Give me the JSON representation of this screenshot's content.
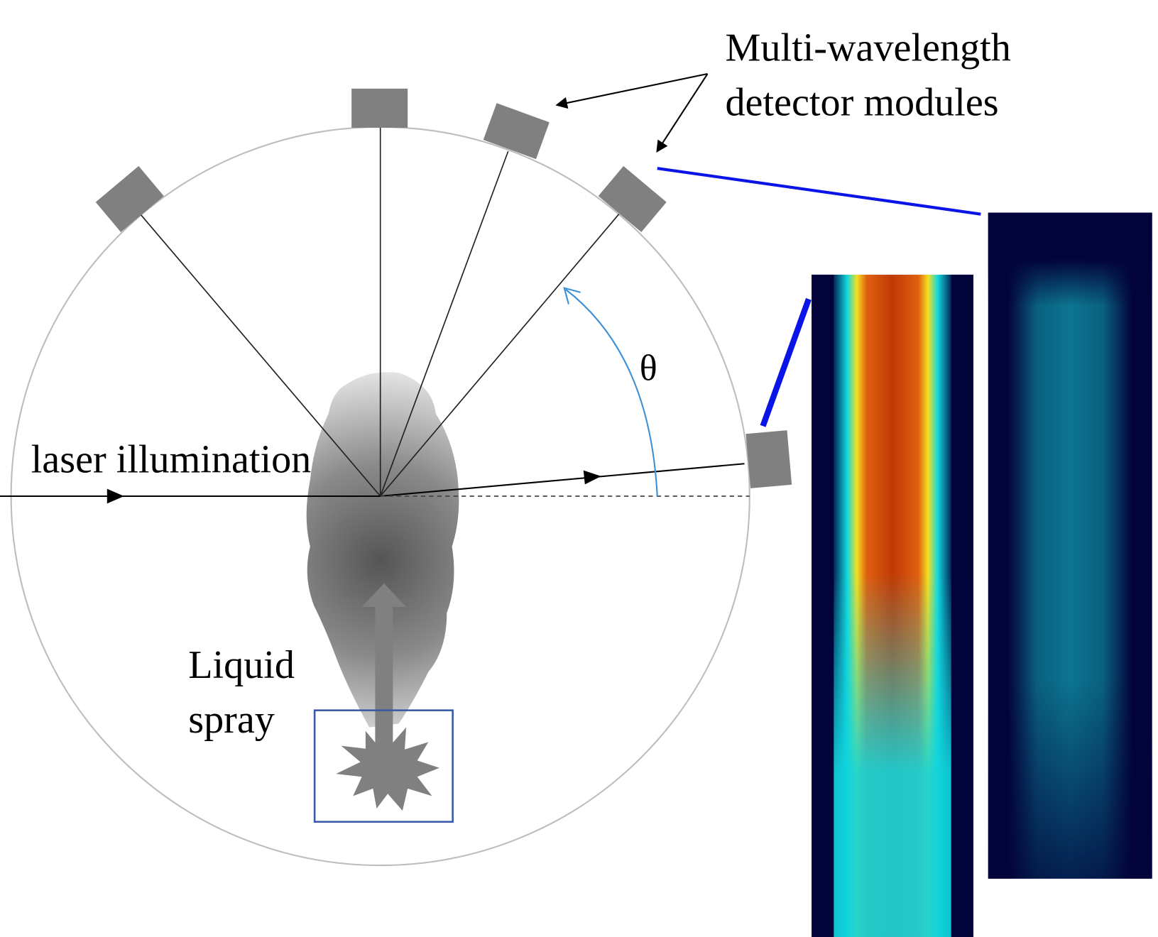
{
  "labels": {
    "detectors": "Multi-wavelength",
    "detectors_line2": "detector modules",
    "laser": "laser illumination",
    "spray_line1": "Liquid",
    "spray_line2": "spray",
    "angle": "θ"
  },
  "colors": {
    "detector": "#808080",
    "callout_line": "#0a14e6",
    "angle_arc": "#3a8fd8",
    "nozzle_box": "#3a5ba8",
    "image_background": "#02033a"
  }
}
